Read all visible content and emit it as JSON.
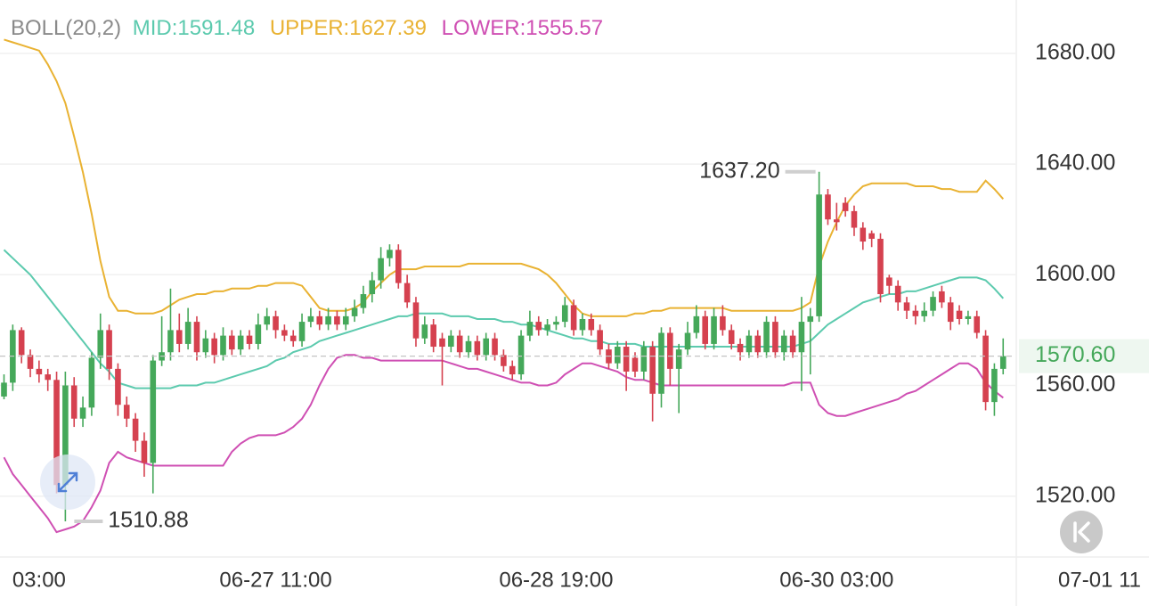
{
  "chart_data": {
    "type": "candlestick",
    "title": "BOLL(20,2)",
    "categories": [
      null,
      null,
      null,
      null,
      "03:00",
      null,
      null,
      null,
      null,
      null,
      null,
      null,
      null,
      null,
      null,
      null,
      null,
      null,
      null,
      null,
      null,
      null,
      null,
      null,
      null,
      null,
      null,
      null,
      null,
      null,
      null,
      "06-27 11:00",
      null,
      null,
      null,
      null,
      null,
      null,
      null,
      null,
      null,
      null,
      null,
      null,
      null,
      null,
      null,
      null,
      null,
      null,
      null,
      null,
      null,
      null,
      null,
      null,
      null,
      null,
      null,
      null,
      null,
      null,
      null,
      "06-28 19:00",
      null,
      null,
      null,
      null,
      null,
      null,
      null,
      null,
      null,
      null,
      null,
      null,
      null,
      null,
      null,
      null,
      null,
      null,
      null,
      null,
      null,
      null,
      null,
      null,
      null,
      null,
      null,
      null,
      null,
      null,
      null,
      "06-30 03:00",
      null,
      null,
      null,
      null,
      null,
      null,
      null,
      null,
      null,
      null,
      null,
      null,
      null,
      null,
      null,
      null,
      null,
      null,
      null,
      null,
      null,
      null,
      null,
      null,
      null,
      null,
      null,
      null,
      null,
      "07-01 11",
      null,
      null
    ],
    "open": [
      1556,
      1561,
      1580,
      1571,
      1566,
      1564,
      1562,
      1524,
      1560,
      1548,
      1552,
      1570,
      1580,
      1566,
      1553,
      1548,
      1540,
      1532,
      1569,
      1572,
      1580,
      1575,
      1583,
      1572,
      1577,
      1571,
      1578,
      1573,
      1578,
      1575,
      1582,
      1585,
      1580,
      1578,
      1576,
      1583,
      1585,
      1582,
      1585,
      1582,
      1585,
      1588,
      1593,
      1598,
      1606,
      1609,
      1597,
      1590,
      1577,
      1582,
      1577,
      1574,
      1578,
      1572,
      1576,
      1571,
      1577,
      1571,
      1567,
      1564,
      1578,
      1583,
      1580,
      1582,
      1583,
      1589,
      1580,
      1584,
      1580,
      1573,
      1568,
      1574,
      1570,
      1565,
      1574,
      1557,
      1579,
      1566,
      1573,
      1579,
      1585,
      1575,
      1585,
      1580,
      1575,
      1572,
      1578,
      1572,
      1583,
      1572,
      1578,
      1572,
      1583,
      1585,
      1629,
      1620,
      1626,
      1623,
      1617,
      1615,
      1613,
      1599,
      1596,
      1590,
      1587,
      1585,
      1587,
      1594,
      1590,
      1587,
      1584,
      1585,
      1578,
      1554,
      1566,
      null,
      null,
      null,
      null,
      null,
      null,
      null,
      null,
      null,
      null,
      null,
      null,
      null
    ],
    "high": [
      1564,
      1582,
      1581,
      1573,
      1569,
      1566,
      1565,
      1565,
      1563,
      1556,
      1572,
      1586,
      1582,
      1568,
      1556,
      1550,
      1543,
      1571,
      1585,
      1595,
      1586,
      1588,
      1585,
      1580,
      1579,
      1581,
      1580,
      1580,
      1580,
      1586,
      1588,
      1587,
      1582,
      1580,
      1586,
      1588,
      1587,
      1588,
      1587,
      1588,
      1591,
      1596,
      1601,
      1610,
      1611,
      1611,
      1600,
      1592,
      1585,
      1584,
      1579,
      1580,
      1580,
      1578,
      1578,
      1579,
      1579,
      1573,
      1569,
      1580,
      1587,
      1585,
      1584,
      1585,
      1592,
      1591,
      1586,
      1586,
      1582,
      1575,
      1576,
      1576,
      1572,
      1576,
      1576,
      1581,
      1581,
      1575,
      1583,
      1589,
      1587,
      1588,
      1589,
      1582,
      1577,
      1580,
      1580,
      1585,
      1585,
      1580,
      1580,
      1592,
      1588,
      1637.2,
      1631,
      1626,
      1628,
      1625,
      1619,
      1616,
      1615,
      1600,
      1598,
      1592,
      1589,
      1590,
      1594,
      1596,
      1592,
      1589,
      1587,
      1587,
      1580,
      1568,
      1577,
      null,
      null,
      null,
      null,
      null,
      null,
      null,
      null,
      null,
      null,
      null,
      null,
      null
    ],
    "low": [
      1555,
      1558,
      1568,
      1563,
      1561,
      1558,
      1521,
      1510.88,
      1545,
      1545,
      1549,
      1566,
      1562,
      1549,
      1545,
      1536,
      1527,
      1521,
      1567,
      1569,
      1572,
      1573,
      1569,
      1570,
      1568,
      1569,
      1571,
      1571,
      1573,
      1573,
      1580,
      1577,
      1576,
      1574,
      1574,
      1581,
      1580,
      1580,
      1580,
      1580,
      1583,
      1586,
      1590,
      1595,
      1603,
      1595,
      1588,
      1574,
      1575,
      1572,
      1560,
      1572,
      1570,
      1570,
      1569,
      1569,
      1569,
      1565,
      1562,
      1562,
      1576,
      1578,
      1578,
      1580,
      1581,
      1578,
      1578,
      1578,
      1571,
      1566,
      1566,
      1558,
      1563,
      1562,
      1547,
      1552,
      1560,
      1550,
      1571,
      1577,
      1573,
      1573,
      1578,
      1573,
      1569,
      1570,
      1570,
      1570,
      1570,
      1569,
      1570,
      1558,
      1564,
      1583,
      1618,
      1616,
      1621,
      1614,
      1609,
      1610,
      1590,
      1593,
      1587,
      1584,
      1582,
      1583,
      1585,
      1588,
      1580,
      1582,
      1582,
      1577,
      1551,
      1549,
      1564,
      null,
      null,
      null,
      null,
      null,
      null,
      null,
      null,
      null,
      null,
      null,
      null,
      null
    ],
    "close": [
      1561,
      1580,
      1571,
      1566,
      1564,
      1562,
      1524,
      1560,
      1548,
      1552,
      1570,
      1580,
      1566,
      1553,
      1548,
      1540,
      1532,
      1569,
      1572,
      1580,
      1575,
      1583,
      1572,
      1577,
      1571,
      1578,
      1573,
      1578,
      1575,
      1582,
      1585,
      1580,
      1578,
      1576,
      1583,
      1585,
      1582,
      1585,
      1582,
      1585,
      1588,
      1593,
      1598,
      1606,
      1609,
      1597,
      1590,
      1577,
      1582,
      1574,
      1574,
      1578,
      1572,
      1576,
      1571,
      1577,
      1571,
      1567,
      1564,
      1578,
      1583,
      1580,
      1582,
      1583,
      1589,
      1580,
      1584,
      1580,
      1573,
      1568,
      1574,
      1565,
      1565,
      1574,
      1557,
      1579,
      1566,
      1573,
      1579,
      1585,
      1575,
      1585,
      1580,
      1575,
      1572,
      1578,
      1572,
      1583,
      1572,
      1578,
      1572,
      1583,
      1585,
      1629,
      1620,
      1619,
      1623,
      1617,
      1612,
      1613,
      1593,
      1596,
      1590,
      1587,
      1585,
      1587,
      1592,
      1590,
      1583,
      1584,
      1585,
      1579,
      1554,
      1566,
      1570.6,
      null,
      null,
      null,
      null,
      null,
      null,
      null,
      null,
      null,
      null,
      null,
      null,
      null
    ],
    "series": [
      {
        "name": "MID",
        "label": "MID:1591.48",
        "color": "#5ccaae",
        "values": [
          1609,
          1606,
          1603,
          1600,
          1596,
          1592,
          1588,
          1584,
          1580,
          1576,
          1572,
          1568,
          1565,
          1561,
          1560,
          1559,
          1559,
          1559,
          1559,
          1559,
          1560,
          1560,
          1560,
          1561,
          1561,
          1562,
          1563,
          1564,
          1565,
          1566,
          1567,
          1569,
          1570,
          1572,
          1573,
          1574,
          1576,
          1577,
          1578,
          1579,
          1580,
          1581,
          1582,
          1583,
          1584,
          1585,
          1585,
          1586,
          1586,
          1586,
          1586,
          1585,
          1585,
          1585,
          1584,
          1584,
          1584,
          1583,
          1583,
          1582,
          1582,
          1581,
          1580,
          1579,
          1578,
          1577,
          1577,
          1576,
          1576,
          1575,
          1575,
          1575,
          1575,
          1574,
          1574,
          1574,
          1574,
          1574,
          1574,
          1574,
          1574,
          1574,
          1574,
          1574,
          1574,
          1574,
          1574,
          1574,
          1574,
          1574,
          1574,
          1575,
          1576,
          1579,
          1582,
          1584,
          1586,
          1588,
          1590,
          1591,
          1592,
          1593,
          1593,
          1594,
          1594,
          1595,
          1596,
          1597,
          1598,
          1599,
          1599,
          1599,
          1598,
          1595,
          1591.48,
          null,
          null,
          null,
          null,
          null,
          null,
          null,
          null,
          null,
          null,
          null,
          null,
          null
        ]
      },
      {
        "name": "UPPER",
        "label": "UPPER:1627.39",
        "color": "#e9b232",
        "values": [
          1685,
          1684,
          1683,
          1682,
          1681,
          1676,
          1670,
          1662,
          1650,
          1637,
          1622,
          1605,
          1592,
          1587,
          1587,
          1586,
          1586,
          1586,
          1587,
          1589,
          1591,
          1592,
          1593,
          1593,
          1594,
          1594,
          1595,
          1595,
          1595,
          1596,
          1596,
          1597,
          1597,
          1597,
          1596,
          1592,
          1588,
          1587,
          1587,
          1587,
          1588,
          1590,
          1594,
          1597,
          1600,
          1602,
          1602,
          1602,
          1603,
          1603,
          1603,
          1603,
          1603,
          1604,
          1604,
          1604,
          1604,
          1604,
          1604,
          1604,
          1603,
          1602,
          1600,
          1597,
          1593,
          1589,
          1586,
          1585,
          1585,
          1585,
          1585,
          1585,
          1586,
          1586,
          1587,
          1587,
          1588,
          1588,
          1588,
          1588,
          1588,
          1588,
          1588,
          1587,
          1587,
          1587,
          1587,
          1587,
          1587,
          1587,
          1587,
          1588,
          1590,
          1603,
          1612,
          1619,
          1625,
          1629,
          1632,
          1633,
          1633,
          1633,
          1633,
          1633,
          1632,
          1632,
          1632,
          1631,
          1631,
          1630,
          1630,
          1630,
          1634,
          1631,
          1627.39,
          null,
          null,
          null,
          null,
          null,
          null,
          null,
          null,
          null,
          null,
          null,
          null,
          null
        ]
      },
      {
        "name": "LOWER",
        "label": "LOWER:1555.57",
        "color": "#cf4fb3",
        "values": [
          1534,
          1528,
          1524,
          1520,
          1516,
          1512,
          1507,
          1508,
          1509,
          1511,
          1516,
          1522,
          1532,
          1536,
          1534,
          1533,
          1532,
          1531,
          1531,
          1531,
          1531,
          1531,
          1531,
          1531,
          1531,
          1531,
          1536,
          1539,
          1541,
          1542,
          1542,
          1542,
          1543,
          1545,
          1548,
          1553,
          1560,
          1566,
          1570,
          1571,
          1571,
          1570,
          1570,
          1569,
          1569,
          1569,
          1569,
          1569,
          1569,
          1569,
          1569,
          1568,
          1567,
          1566,
          1566,
          1565,
          1564,
          1563,
          1562,
          1561,
          1561,
          1560,
          1560,
          1561,
          1564,
          1566,
          1568,
          1568,
          1567,
          1566,
          1565,
          1563,
          1562,
          1562,
          1561,
          1560,
          1560,
          1560,
          1560,
          1560,
          1560,
          1560,
          1560,
          1560,
          1560,
          1560,
          1560,
          1560,
          1560,
          1560,
          1561,
          1561,
          1561,
          1553,
          1550,
          1549,
          1549,
          1550,
          1551,
          1552,
          1553,
          1554,
          1555,
          1557,
          1558,
          1560,
          1562,
          1564,
          1566,
          1568,
          1568,
          1566,
          1561,
          1558,
          1555.57,
          null,
          null,
          null,
          null,
          null,
          null,
          null,
          null,
          null,
          null,
          null,
          null,
          null
        ]
      }
    ],
    "up_color": "#45a85a",
    "down_color": "#d5414f",
    "ylim": [
      1498,
      1699.3
    ],
    "yticks": [
      {
        "value": 1520,
        "label": "1520.00"
      },
      {
        "value": 1560,
        "label": "1560.00"
      },
      {
        "value": 1600,
        "label": "1600.00"
      },
      {
        "value": 1640,
        "label": "1640.00"
      },
      {
        "value": 1680,
        "label": "1680.00"
      }
    ],
    "grid": true,
    "high_label": "1637.20",
    "low_label": "1510.88",
    "last_price": {
      "value": 1570.6,
      "label": "1570.60"
    }
  }
}
